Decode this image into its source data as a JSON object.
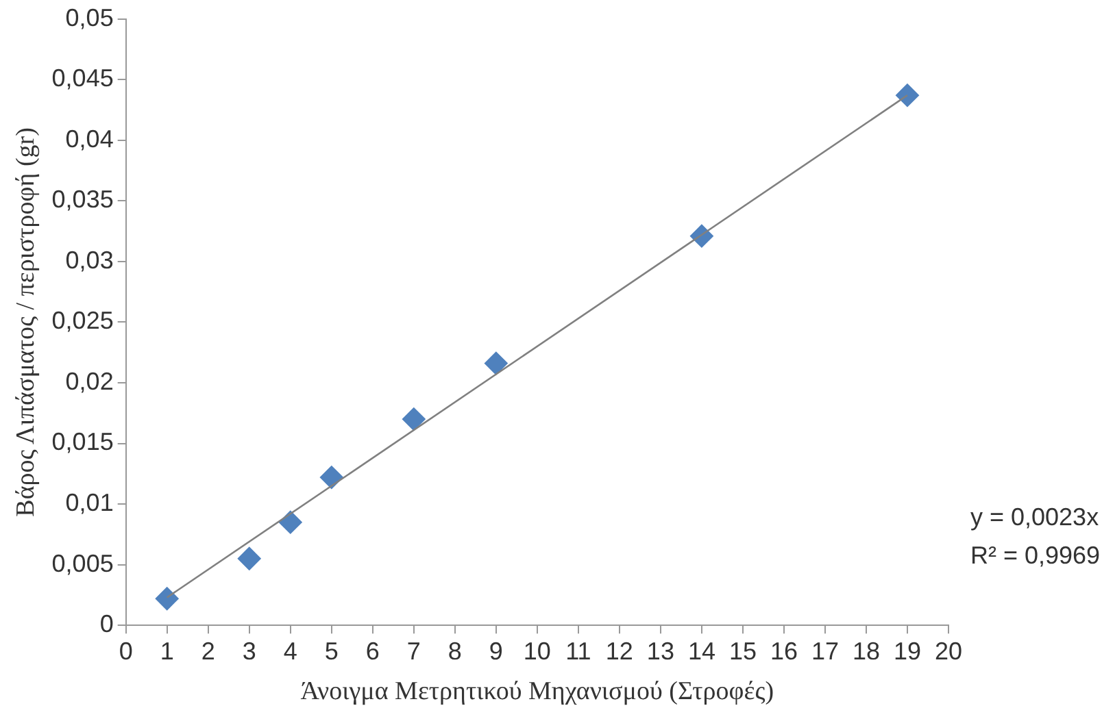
{
  "chart_data": {
    "type": "scatter",
    "xlabel": "Άνοιγμα Μετρητικού Μηχανισμού (Στροφές)",
    "ylabel": "Βάρος Λιπάσματος / περιστροφή (gr)",
    "x": [
      1,
      3,
      4,
      5,
      7,
      9,
      14,
      19
    ],
    "series": [
      {
        "type": "scatter",
        "color": "#4f81bd",
        "marker": "diamond",
        "values": [
          0.0022,
          0.0055,
          0.0085,
          0.0122,
          0.017,
          0.0216,
          0.0321,
          0.0437
        ]
      },
      {
        "type": "line",
        "color": "#808080",
        "x": [
          1,
          19
        ],
        "values": [
          0.0023,
          0.0437
        ],
        "marker": "none",
        "line_style": "solid"
      }
    ],
    "xlim": [
      0,
      20
    ],
    "xticks": [
      0,
      1,
      2,
      3,
      4,
      5,
      6,
      7,
      8,
      9,
      10,
      11,
      12,
      13,
      14,
      15,
      16,
      17,
      18,
      19,
      20
    ],
    "ylim": [
      0,
      0.05
    ],
    "yticks": [
      0,
      {
        "value": 0.005,
        "label": "0,005"
      },
      {
        "value": 0.01,
        "label": "0,01"
      },
      {
        "value": 0.015,
        "label": "0,015"
      },
      {
        "value": 0.02,
        "label": "0,02"
      },
      {
        "value": 0.025,
        "label": "0,025"
      },
      {
        "value": 0.03,
        "label": "0,03"
      },
      {
        "value": 0.035,
        "label": "0,035"
      },
      {
        "value": 0.04,
        "label": "0,04"
      },
      {
        "value": 0.045,
        "label": "0,045"
      },
      {
        "value": 0.05,
        "label": "0,05"
      }
    ],
    "annotations": [
      "y = 0,0023x",
      "R² = 0,9969"
    ],
    "grid": false,
    "legend": false
  }
}
